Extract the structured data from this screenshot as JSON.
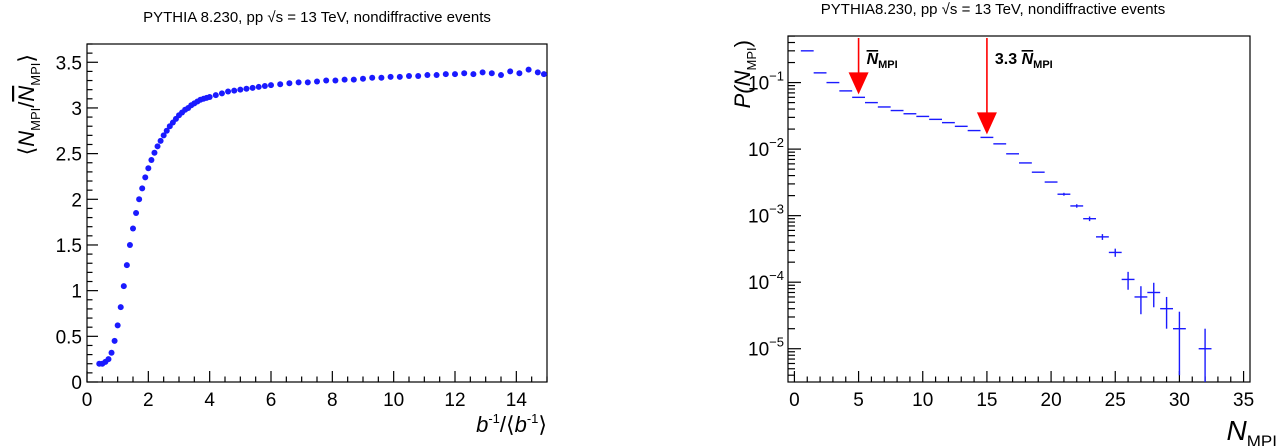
{
  "colors": {
    "series": "#1a1aff",
    "arrow": "#ff0000",
    "axis": "#000000"
  },
  "chart_data": [
    {
      "type": "scatter",
      "title": "PYTHIA 8.230, pp √s = 13 TeV, nondiffractive events",
      "xlabel": {
        "b": "b",
        "sup1": "-1",
        "sep": "/⟨",
        "b2": "b",
        "sup2": "-1",
        "close": "⟩"
      },
      "ylabel": {
        "open": "⟨",
        "n": "N",
        "sub": "MPI",
        "slash": "/",
        "nbar": "N",
        "sub2": "MPI",
        "close": "⟩"
      },
      "xlim": [
        0,
        15
      ],
      "ylim": [
        0,
        3.7
      ],
      "xticks": [
        "0",
        "2",
        "4",
        "6",
        "8",
        "10",
        "12",
        "14"
      ],
      "yticks": [
        "0",
        "0.5",
        "1",
        "1.5",
        "2",
        "2.5",
        "3",
        "3.5"
      ],
      "xtick_values": [
        0,
        2,
        4,
        6,
        8,
        10,
        12,
        14
      ],
      "ytick_values": [
        0,
        0.5,
        1,
        1.5,
        2,
        2.5,
        3,
        3.5
      ],
      "grid": false,
      "x": [
        0.4,
        0.5,
        0.6,
        0.7,
        0.8,
        0.9,
        1.0,
        1.1,
        1.2,
        1.3,
        1.4,
        1.5,
        1.6,
        1.7,
        1.8,
        1.9,
        2.0,
        2.1,
        2.2,
        2.3,
        2.4,
        2.5,
        2.6,
        2.7,
        2.8,
        2.9,
        3.0,
        3.1,
        3.2,
        3.3,
        3.4,
        3.5,
        3.6,
        3.7,
        3.8,
        3.9,
        4.0,
        4.2,
        4.4,
        4.6,
        4.8,
        5.0,
        5.2,
        5.4,
        5.6,
        5.8,
        6.0,
        6.3,
        6.6,
        6.9,
        7.2,
        7.5,
        7.8,
        8.1,
        8.4,
        8.7,
        9.0,
        9.3,
        9.6,
        9.9,
        10.2,
        10.5,
        10.8,
        11.1,
        11.4,
        11.7,
        12.0,
        12.3,
        12.6,
        12.9,
        13.2,
        13.5,
        13.8,
        14.1,
        14.4,
        14.7,
        14.9
      ],
      "y": [
        0.2,
        0.2,
        0.22,
        0.25,
        0.32,
        0.45,
        0.62,
        0.82,
        1.05,
        1.28,
        1.5,
        1.68,
        1.85,
        2.0,
        2.12,
        2.24,
        2.34,
        2.43,
        2.51,
        2.58,
        2.64,
        2.7,
        2.75,
        2.8,
        2.84,
        2.88,
        2.92,
        2.95,
        2.98,
        3.0,
        3.03,
        3.05,
        3.07,
        3.09,
        3.1,
        3.11,
        3.12,
        3.14,
        3.16,
        3.18,
        3.19,
        3.2,
        3.21,
        3.22,
        3.23,
        3.24,
        3.25,
        3.26,
        3.27,
        3.28,
        3.28,
        3.29,
        3.3,
        3.3,
        3.31,
        3.31,
        3.32,
        3.33,
        3.33,
        3.34,
        3.34,
        3.35,
        3.35,
        3.36,
        3.36,
        3.37,
        3.37,
        3.38,
        3.37,
        3.39,
        3.38,
        3.36,
        3.4,
        3.38,
        3.42,
        3.39,
        3.37
      ]
    },
    {
      "type": "bar",
      "title": "PYTHIA8.230, pp √s = 13 TeV, nondiffractive events",
      "xlabel": {
        "n": "N",
        "sub": "MPI"
      },
      "ylabel": {
        "p": "P(",
        "n": "N",
        "sub": "MPI",
        "close": ")"
      },
      "xlim": [
        -0.5,
        35.5
      ],
      "ylim_log10": [
        -5.5,
        -0.3
      ],
      "log_y": true,
      "xticks": [
        "0",
        "5",
        "10",
        "15",
        "20",
        "25",
        "30",
        "35"
      ],
      "xtick_values": [
        0,
        5,
        10,
        15,
        20,
        25,
        30,
        35
      ],
      "yticks": [
        {
          "base": "10",
          "exp": "−1",
          "log": -1
        },
        {
          "base": "10",
          "exp": "−2",
          "log": -2
        },
        {
          "base": "10",
          "exp": "−3",
          "log": -3
        },
        {
          "base": "10",
          "exp": "−4",
          "log": -4
        },
        {
          "base": "10",
          "exp": "−5",
          "log": -5
        }
      ],
      "grid": false,
      "x": [
        1,
        2,
        3,
        4,
        5,
        6,
        7,
        8,
        9,
        10,
        11,
        12,
        13,
        14,
        15,
        16,
        17,
        18,
        19,
        20,
        21,
        22,
        23,
        24,
        25,
        26,
        27,
        28,
        29,
        30,
        32
      ],
      "y": [
        0.3,
        0.14,
        0.1,
        0.075,
        0.06,
        0.05,
        0.043,
        0.038,
        0.034,
        0.031,
        0.028,
        0.025,
        0.022,
        0.019,
        0.015,
        0.012,
        0.0085,
        0.0062,
        0.0045,
        0.0032,
        0.0021,
        0.0014,
        0.0009,
        0.00048,
        0.00028,
        0.00011,
        6e-05,
        7e-05,
        4e-05,
        2e-05,
        1e-05
      ],
      "yerr_rel": [
        0,
        0,
        0,
        0,
        0,
        0,
        0,
        0,
        0,
        0,
        0,
        0,
        0,
        0,
        0,
        0,
        0,
        0,
        0,
        0,
        0.05,
        0.06,
        0.08,
        0.1,
        0.14,
        0.3,
        0.45,
        0.4,
        0.5,
        0.8,
        1.0
      ],
      "annotations": [
        {
          "x": 5,
          "arrow_tip": 0.06,
          "label": {
            "prefix": "",
            "n": "N",
            "sub": "MPI"
          }
        },
        {
          "x": 15,
          "arrow_tip": 0.015,
          "label": {
            "prefix": "3.3",
            "n": "N",
            "sub": "MPI"
          }
        }
      ]
    }
  ]
}
